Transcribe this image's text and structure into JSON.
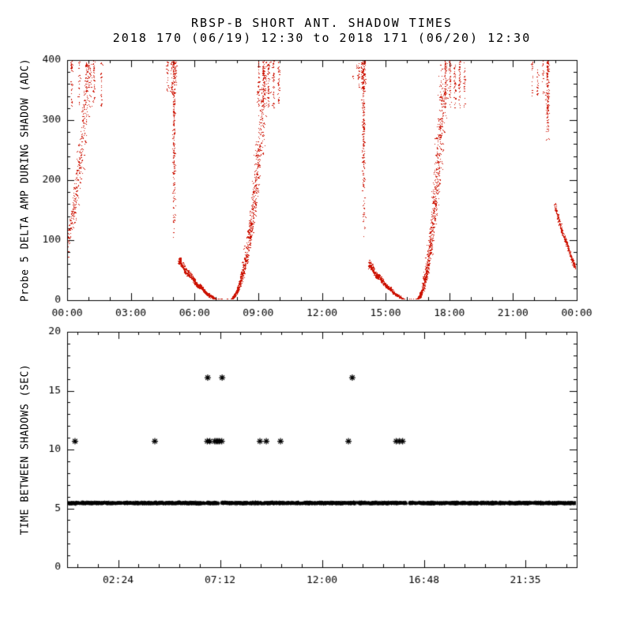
{
  "colors": {
    "background": "#ffffff",
    "axis": "#000000",
    "top_points": "#cc1100",
    "bottom_points": "#000000"
  },
  "chart_data": [
    {
      "type": "scatter",
      "title": "RBSP-B SHORT ANT. SHADOW TIMES",
      "subtitle": "2018 170 (06/19) 12:30 to 2018 171 (06/20) 12:30",
      "ylabel": "Probe 5 DELTA AMP DURING SHADOW (ADC)",
      "xlabel": "",
      "marker": "dot",
      "color": "#cc1100",
      "xlim_hours": [
        0,
        24
      ],
      "ylim": [
        0,
        400
      ],
      "x_ticks": {
        "values": [
          0,
          3,
          6,
          9,
          12,
          15,
          18,
          21,
          24
        ],
        "labels": [
          "00:00",
          "03:00",
          "06:00",
          "09:00",
          "12:00",
          "15:00",
          "18:00",
          "21:00",
          "00:00"
        ]
      },
      "y_ticks": {
        "values": [
          0,
          100,
          200,
          300,
          400
        ],
        "labels": [
          "0",
          "100",
          "200",
          "300",
          "400"
        ]
      },
      "segments": [
        {
          "type": "rise",
          "t0": -1.2,
          "t1": 1.05,
          "ymax": 400,
          "pow": 2.3,
          "spread": 0.45,
          "n": 650
        },
        {
          "type": "blob",
          "t0": 0.2,
          "t1": 1.6,
          "y0": 320,
          "y1": 400,
          "cols": 5,
          "n": 150
        },
        {
          "type": "blob",
          "t0": 4.72,
          "t1": 5.1,
          "y0": 345,
          "y1": 400,
          "cols": 3,
          "n": 70
        },
        {
          "type": "column",
          "t": 5.02,
          "w": 0.09,
          "y0": 70,
          "y1": 400,
          "n": 240
        },
        {
          "type": "fall",
          "t0": 5.25,
          "t1": 7.15,
          "ya": 64,
          "band": 13,
          "n": 780
        },
        {
          "type": "flat",
          "t0": 7.0,
          "t1": 7.78,
          "band": 5,
          "n": 170
        },
        {
          "type": "rise",
          "t0": 7.55,
          "t1": 9.35,
          "ymax": 400,
          "pow": 2.3,
          "spread": 0.5,
          "n": 850
        },
        {
          "type": "blob",
          "t0": 9.0,
          "t1": 9.95,
          "y0": 320,
          "y1": 400,
          "cols": 5,
          "n": 185
        },
        {
          "type": "points",
          "pts": [
            [
              13.45,
              372
            ],
            [
              13.62,
              390
            ]
          ]
        },
        {
          "type": "blob",
          "t0": 13.72,
          "t1": 14.02,
          "y0": 350,
          "y1": 400,
          "cols": 3,
          "n": 60
        },
        {
          "type": "column",
          "t": 13.95,
          "w": 0.09,
          "y0": 92,
          "y1": 400,
          "n": 220
        },
        {
          "type": "fall",
          "t0": 14.2,
          "t1": 16.0,
          "ya": 58,
          "band": 12,
          "n": 720
        },
        {
          "type": "flat",
          "t0": 15.85,
          "t1": 16.6,
          "band": 5,
          "n": 170
        },
        {
          "type": "rise",
          "t0": 16.35,
          "t1": 17.75,
          "ymax": 400,
          "pow": 2.3,
          "spread": 0.5,
          "n": 850
        },
        {
          "type": "blob",
          "t0": 17.8,
          "t1": 18.7,
          "y0": 320,
          "y1": 400,
          "cols": 5,
          "n": 185
        },
        {
          "type": "blob",
          "t0": 21.9,
          "t1": 22.4,
          "y0": 340,
          "y1": 400,
          "cols": 3,
          "n": 55
        },
        {
          "type": "column",
          "t": 22.62,
          "w": 0.09,
          "y0": 255,
          "y1": 400,
          "n": 150
        },
        {
          "type": "fall",
          "t0": 22.95,
          "t1": 24.85,
          "ya": 155,
          "band": 14,
          "n": 600
        }
      ]
    },
    {
      "type": "scatter",
      "title": "",
      "ylabel": "TIME BETWEEN SHADOWS (SEC)",
      "xlabel": "",
      "marker": "asterisk",
      "color": "#000000",
      "xlim_hours": [
        0,
        24
      ],
      "ylim": [
        0,
        20
      ],
      "x_ticks": {
        "values": [
          2.4,
          7.2,
          12,
          16.8,
          21.5833
        ],
        "labels": [
          "02:24",
          "07:12",
          "12:00",
          "16:48",
          "21:35"
        ]
      },
      "y_ticks": {
        "values": [
          0,
          5,
          10,
          15,
          20
        ],
        "labels": [
          "0",
          "5",
          "10",
          "15",
          "20"
        ]
      },
      "band": {
        "y": 5.45,
        "jitter": 0.1,
        "t_range": [
          0,
          24
        ],
        "gaps": [
          [
            7.14,
            7.26
          ],
          [
            15.98,
            16.12
          ]
        ],
        "n": 1700
      },
      "mid_points": {
        "y": 10.7,
        "times": [
          0.37,
          4.13,
          6.6,
          6.72,
          6.95,
          7.02,
          7.1,
          7.18,
          7.28,
          9.08,
          9.38,
          10.05,
          13.25,
          15.5,
          15.65,
          15.8
        ]
      },
      "high_points": {
        "y": 16.1,
        "times": [
          6.62,
          7.3,
          13.43
        ]
      }
    }
  ]
}
